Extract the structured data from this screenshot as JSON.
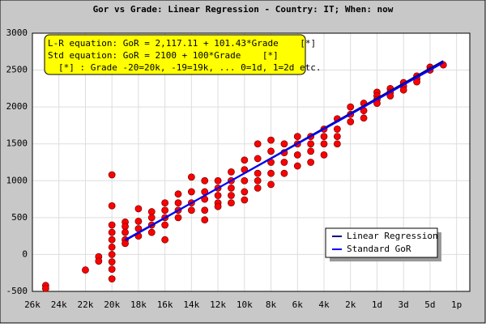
{
  "chart_data": {
    "type": "scatter",
    "title": "Gor vs Grade: Linear Regression - Country: IT; When: now",
    "annotations": [
      "L-R equation: GoR = 2,117.11 + 101.43*Grade    [*]",
      "Std equation: GoR = 2100 + 100*Grade    [*]",
      "[*] : Grade -20=20k, -19=19k, ... 0=1d, 1=2d etc."
    ],
    "xlim": [
      -26,
      7
    ],
    "xticks": [
      {
        "value": -26,
        "label": "26k"
      },
      {
        "value": -24,
        "label": "24k"
      },
      {
        "value": -22,
        "label": "22k"
      },
      {
        "value": -20,
        "label": "20k"
      },
      {
        "value": -18,
        "label": "18k"
      },
      {
        "value": -16,
        "label": "16k"
      },
      {
        "value": -14,
        "label": "14k"
      },
      {
        "value": -12,
        "label": "12k"
      },
      {
        "value": -10,
        "label": "10k"
      },
      {
        "value": -8,
        "label": "8k"
      },
      {
        "value": -6,
        "label": "6k"
      },
      {
        "value": -4,
        "label": "4k"
      },
      {
        "value": -2,
        "label": "2k"
      },
      {
        "value": 0,
        "label": "1d"
      },
      {
        "value": 2,
        "label": "3d"
      },
      {
        "value": 4,
        "label": "5d"
      },
      {
        "value": 6,
        "label": "1p"
      }
    ],
    "ylim": [
      -500,
      3000
    ],
    "yticks": [
      -500,
      0,
      500,
      1000,
      1500,
      2000,
      2500,
      3000
    ],
    "grid": true,
    "legend": "lower-right",
    "points": {
      "color": "#ff0000",
      "x": [
        -25,
        -25,
        -22,
        -21,
        -21,
        -20,
        -20,
        -20,
        -20,
        -20,
        -20,
        -20,
        -20,
        -20,
        -20,
        -19,
        -19,
        -19,
        -19,
        -19,
        -18,
        -18,
        -18,
        -18,
        -17,
        -17,
        -17,
        -17,
        -16,
        -16,
        -16,
        -16,
        -16,
        -15,
        -15,
        -15,
        -15,
        -14,
        -14,
        -14,
        -14,
        -13,
        -13,
        -13,
        -13,
        -13,
        -12,
        -12,
        -12,
        -12,
        -12,
        -11,
        -11,
        -11,
        -11,
        -11,
        -10,
        -10,
        -10,
        -10,
        -10,
        -9,
        -9,
        -9,
        -9,
        -9,
        -8,
        -8,
        -8,
        -8,
        -8,
        -7,
        -7,
        -7,
        -7,
        -6,
        -6,
        -6,
        -6,
        -5,
        -5,
        -5,
        -5,
        -4,
        -4,
        -4,
        -4,
        -3,
        -3,
        -3,
        -3,
        -2,
        -2,
        -2,
        -1,
        -1,
        -1,
        0,
        0,
        0,
        0,
        1,
        1,
        1,
        2,
        2,
        2,
        3,
        3,
        3,
        4,
        4,
        5
      ],
      "y": [
        -420,
        -460,
        -210,
        -30,
        -90,
        1080,
        660,
        400,
        300,
        200,
        100,
        0,
        -100,
        -200,
        -330,
        440,
        380,
        300,
        200,
        150,
        620,
        450,
        350,
        250,
        580,
        500,
        400,
        300,
        700,
        600,
        500,
        400,
        200,
        820,
        700,
        600,
        500,
        1050,
        850,
        700,
        600,
        1000,
        850,
        750,
        600,
        470,
        1000,
        900,
        800,
        700,
        650,
        1120,
        1000,
        900,
        800,
        700,
        1280,
        1150,
        1000,
        850,
        740,
        1500,
        1300,
        1100,
        1000,
        900,
        1550,
        1400,
        1250,
        1100,
        950,
        1500,
        1380,
        1250,
        1100,
        1600,
        1500,
        1350,
        1200,
        1600,
        1500,
        1400,
        1250,
        1700,
        1600,
        1500,
        1350,
        1840,
        1700,
        1600,
        1500,
        2000,
        1900,
        1800,
        2050,
        1950,
        1850,
        2200,
        2150,
        2100,
        2050,
        2250,
        2200,
        2150,
        2330,
        2280,
        2230,
        2420,
        2380,
        2340,
        2540,
        2500,
        2570
      ]
    },
    "series": [
      {
        "name": "Linear Regression",
        "color": "#000080",
        "x": [
          -19,
          5
        ],
        "values": [
          189.94,
          2624.26
        ]
      },
      {
        "name": "Standard GoR",
        "color": "#0000ff",
        "x": [
          -19,
          5
        ],
        "values": [
          200,
          2600
        ]
      }
    ]
  }
}
